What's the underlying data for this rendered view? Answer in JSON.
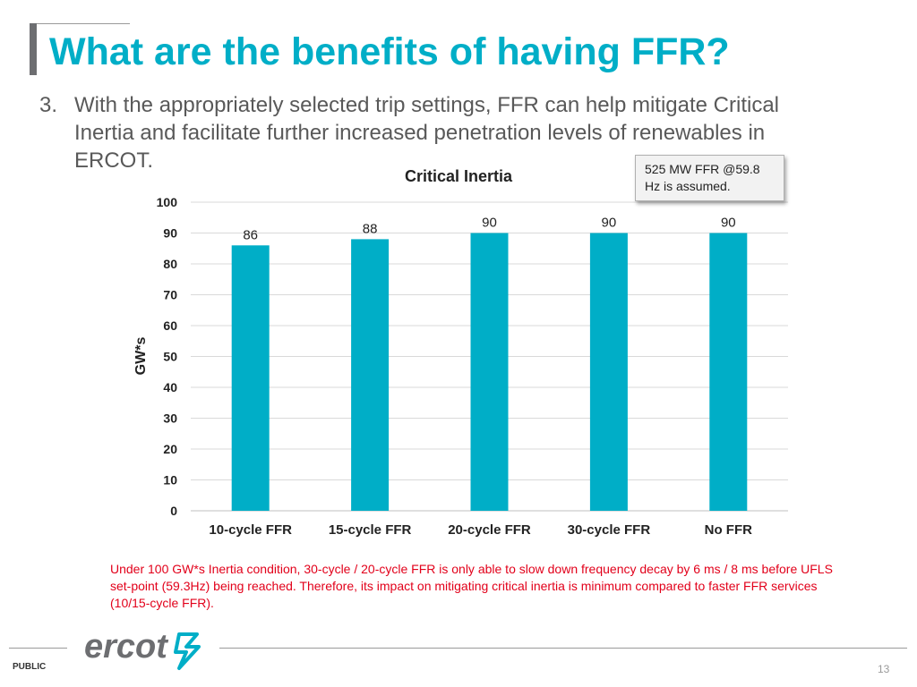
{
  "slide": {
    "title": "What are the benefits of having FFR?",
    "bullet_number": "3.",
    "bullet_text": "With the appropriately selected trip settings, FFR can help mitigate Critical Inertia and facilitate further increased penetration levels of renewables in ERCOT.",
    "callout": "525 MW FFR @59.8 Hz is assumed.",
    "note": "Under 100 GW*s Inertia condition, 30-cycle / 20-cycle FFR is only able to slow down frequency decay by 6 ms / 8 ms before UFLS set-point (59.3Hz) being reached. Therefore, its impact on mitigating critical inertia is minimum compared to faster FFR services (10/15-cycle FFR).",
    "footer_label": "PUBLIC",
    "logo_text": "ercot",
    "page_number": "13"
  },
  "colors": {
    "title": "#00aec7",
    "bar": "#00aec7",
    "note": "#e2001a"
  },
  "chart_data": {
    "type": "bar",
    "title": "Critical Inertia",
    "xlabel": "",
    "ylabel": "GW*s",
    "categories": [
      "10-cycle FFR",
      "15-cycle FFR",
      "20-cycle FFR",
      "30-cycle FFR",
      "No FFR"
    ],
    "values": [
      86,
      88,
      90,
      90,
      90
    ],
    "ylim": [
      0,
      100
    ],
    "yticks": [
      0,
      10,
      20,
      30,
      40,
      50,
      60,
      70,
      80,
      90,
      100
    ],
    "data_labels": true,
    "grid": true,
    "legend": "none"
  }
}
